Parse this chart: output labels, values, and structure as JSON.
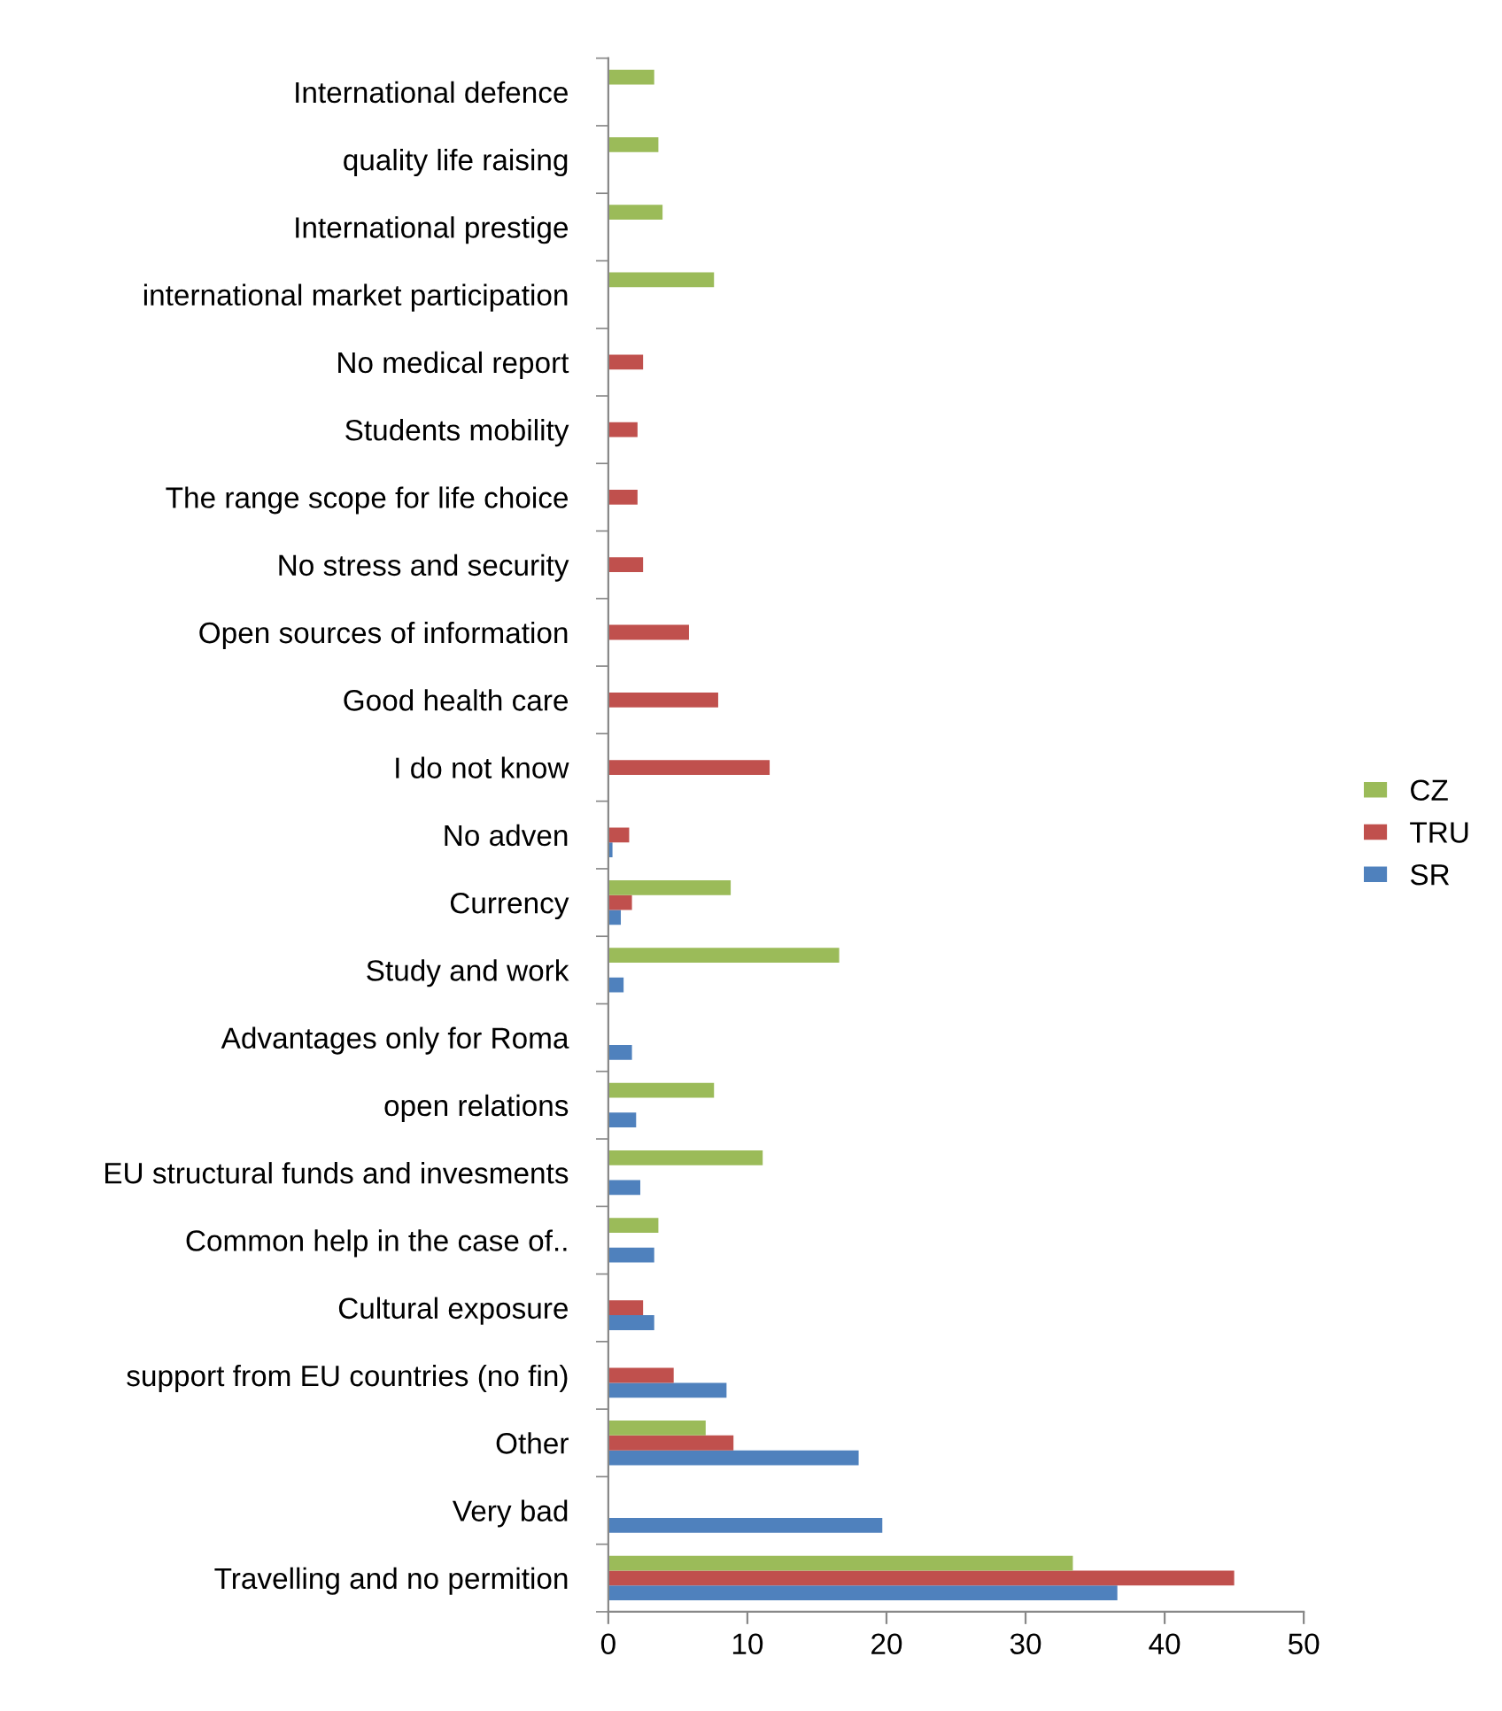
{
  "chart_data": {
    "type": "bar",
    "orientation": "horizontal",
    "categories": [
      "International defence",
      "quality life raising",
      "International prestige",
      "international market participation",
      "No medical report",
      "Students mobility",
      "The range scope for life choice",
      "No stress and security",
      "Open sources of information",
      "Good health care",
      "I do not know",
      "No adven",
      "Currency",
      "Study and work",
      "Advantages only for Roma",
      "open relations",
      "EU structural funds and invesments",
      "Common help in the case of..",
      "Cultural exposure",
      "support from EU countries (no fin)",
      "Other",
      "Very bad",
      "Travelling and no permition"
    ],
    "series": [
      {
        "name": "SR",
        "color": "#4f81bd",
        "values": [
          null,
          null,
          null,
          null,
          null,
          null,
          null,
          null,
          null,
          null,
          null,
          0.3,
          0.9,
          1.1,
          1.7,
          2.0,
          2.3,
          3.3,
          3.3,
          8.5,
          18.0,
          19.7,
          36.6
        ]
      },
      {
        "name": "TRU",
        "color": "#c0504d",
        "values": [
          null,
          null,
          null,
          null,
          2.5,
          2.1,
          2.1,
          2.5,
          5.8,
          7.9,
          11.6,
          1.5,
          1.7,
          null,
          null,
          null,
          null,
          null,
          2.5,
          4.7,
          9.0,
          null,
          45.0
        ]
      },
      {
        "name": "CZ",
        "color": "#9bbb59",
        "values": [
          3.3,
          3.6,
          3.9,
          7.6,
          null,
          null,
          null,
          null,
          null,
          null,
          null,
          null,
          8.8,
          16.6,
          null,
          7.6,
          11.1,
          3.6,
          null,
          null,
          7.0,
          null,
          33.4
        ]
      }
    ],
    "xlim": [
      0,
      50
    ],
    "xticks": [
      0,
      10,
      20,
      30,
      40,
      50
    ],
    "grid": false,
    "legend": "right"
  }
}
